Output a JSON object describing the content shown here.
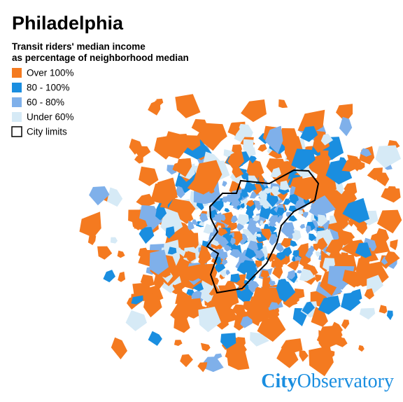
{
  "map": {
    "title": "Philadelphia",
    "subtitle": [
      "Transit riders' median income",
      "as percentage of neighborhood median"
    ],
    "legend": [
      {
        "label": "Over 100%",
        "color": "#f47a20"
      },
      {
        "label": "80 - 100%",
        "color": "#1a8ee0"
      },
      {
        "label": "60 - 80%",
        "color": "#7fb0ea"
      },
      {
        "label": "Under 60%",
        "color": "#d6eaf6"
      },
      {
        "label": "City limits",
        "color": "#ffffff",
        "outline": "#000000"
      }
    ],
    "logo": {
      "bold": "City",
      "light": "Observatory"
    }
  }
}
